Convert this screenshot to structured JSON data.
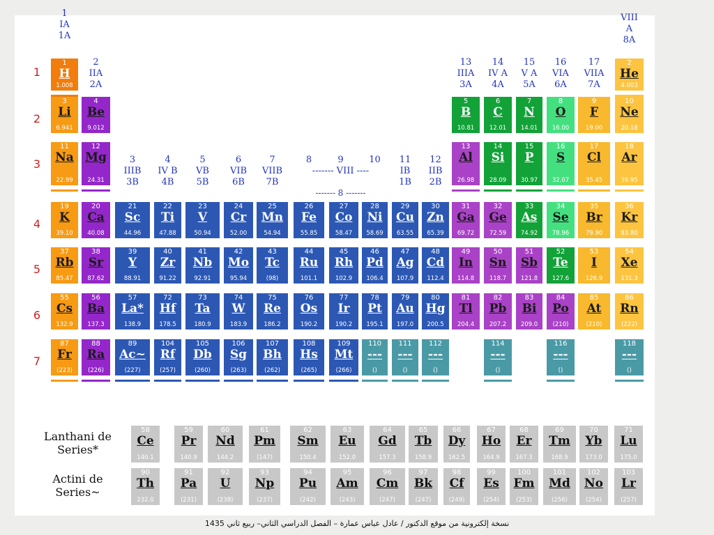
{
  "colors": {
    "alkali": "#f79a14",
    "alkaline": "#9427c9",
    "transition": "#2c58b4",
    "post_transition": "#a942c6",
    "metalloid": "#12a238",
    "nonmetal": "#44e080",
    "halogen": "#f8b92e",
    "noble": "#fcc440",
    "hydrogen": "#f07d0c",
    "undiscovered": "#4a9aa6",
    "lanthanide": "#c8c8c8"
  },
  "period_labels": [
    "1",
    "2",
    "3",
    "4",
    "5",
    "6",
    "7"
  ],
  "group_headers": [
    {
      "col": 1,
      "lines": [
        "1",
        "IA",
        "1A"
      ]
    },
    {
      "col": 2,
      "lines": [
        "2",
        "IIA",
        "2A"
      ]
    },
    {
      "col": 3,
      "lines": [
        "3",
        "IIIB",
        "3B"
      ]
    },
    {
      "col": 4,
      "lines": [
        "4",
        "IV B",
        "4B"
      ]
    },
    {
      "col": 5,
      "lines": [
        "5",
        "VB",
        "5B"
      ]
    },
    {
      "col": 6,
      "lines": [
        "6",
        "VIB",
        "6B"
      ]
    },
    {
      "col": 7,
      "lines": [
        "7",
        "VIIB",
        "7B"
      ]
    },
    {
      "col": 8,
      "lines": [
        "8",
        ""
      ]
    },
    {
      "col": 9,
      "lines": [
        "9",
        "------- VIII ----"
      ]
    },
    {
      "col": 10,
      "lines": [
        "10",
        ""
      ]
    },
    {
      "col": 11,
      "lines": [
        "11",
        "IB",
        "1B"
      ]
    },
    {
      "col": 12,
      "lines": [
        "12",
        "IIB",
        "2B"
      ]
    },
    {
      "col": 13,
      "lines": [
        "13",
        "IIIA",
        "3A"
      ]
    },
    {
      "col": 14,
      "lines": [
        "14",
        "IV A",
        "4A"
      ]
    },
    {
      "col": 15,
      "lines": [
        "15",
        "V A",
        "5A"
      ]
    },
    {
      "col": 16,
      "lines": [
        "16",
        "VIA",
        "6A"
      ]
    },
    {
      "col": 17,
      "lines": [
        "17",
        "VIIA",
        "7A"
      ]
    },
    {
      "col": 18,
      "lines": [
        "VIII",
        "A",
        "8A"
      ]
    }
  ],
  "viii_sub": "------- 8 -------",
  "elements": [
    {
      "n": "1",
      "s": "H",
      "m": "1.008",
      "r": 1,
      "c": 1,
      "t": "hydrogen"
    },
    {
      "n": "2",
      "s": "He",
      "m": "4.003",
      "r": 1,
      "c": 18,
      "t": "noble"
    },
    {
      "n": "3",
      "s": "Li",
      "m": "6.941",
      "r": 2,
      "c": 1,
      "t": "alkali"
    },
    {
      "n": "4",
      "s": "Be",
      "m": "9.012",
      "r": 2,
      "c": 2,
      "t": "alkaline"
    },
    {
      "n": "5",
      "s": "B",
      "m": "10.81",
      "r": 2,
      "c": 13,
      "t": "metalloid"
    },
    {
      "n": "6",
      "s": "C",
      "m": "12.01",
      "r": 2,
      "c": 14,
      "t": "metalloid"
    },
    {
      "n": "7",
      "s": "N",
      "m": "14.01",
      "r": 2,
      "c": 15,
      "t": "metalloid"
    },
    {
      "n": "8",
      "s": "O",
      "m": "16.00",
      "r": 2,
      "c": 16,
      "t": "nonmetal"
    },
    {
      "n": "9",
      "s": "F",
      "m": "19.00",
      "r": 2,
      "c": 17,
      "t": "halogen"
    },
    {
      "n": "10",
      "s": "Ne",
      "m": "20.18",
      "r": 2,
      "c": 18,
      "t": "noble"
    },
    {
      "n": "11",
      "s": "Na",
      "m": "22.99",
      "r": 3,
      "c": 1,
      "t": "alkali"
    },
    {
      "n": "12",
      "s": "Mg",
      "m": "24.31",
      "r": 3,
      "c": 2,
      "t": "alkaline"
    },
    {
      "n": "13",
      "s": "Al",
      "m": "26.98",
      "r": 3,
      "c": 13,
      "t": "post_transition"
    },
    {
      "n": "14",
      "s": "Si",
      "m": "28.09",
      "r": 3,
      "c": 14,
      "t": "metalloid"
    },
    {
      "n": "15",
      "s": "P",
      "m": "30.97",
      "r": 3,
      "c": 15,
      "t": "metalloid"
    },
    {
      "n": "16",
      "s": "S",
      "m": "32.07",
      "r": 3,
      "c": 16,
      "t": "nonmetal"
    },
    {
      "n": "17",
      "s": "Cl",
      "m": "35.45",
      "r": 3,
      "c": 17,
      "t": "halogen"
    },
    {
      "n": "18",
      "s": "Ar",
      "m": "39.95",
      "r": 3,
      "c": 18,
      "t": "noble"
    },
    {
      "n": "19",
      "s": "K",
      "m": "39.10",
      "r": 4,
      "c": 1,
      "t": "alkali"
    },
    {
      "n": "20",
      "s": "Ca",
      "m": "40.08",
      "r": 4,
      "c": 2,
      "t": "alkaline"
    },
    {
      "n": "21",
      "s": "Sc",
      "m": "44.96",
      "r": 4,
      "c": 3,
      "t": "transition"
    },
    {
      "n": "22",
      "s": "Ti",
      "m": "47.88",
      "r": 4,
      "c": 4,
      "t": "transition"
    },
    {
      "n": "23",
      "s": "V",
      "m": "50.94",
      "r": 4,
      "c": 5,
      "t": "transition"
    },
    {
      "n": "24",
      "s": "Cr",
      "m": "52.00",
      "r": 4,
      "c": 6,
      "t": "transition"
    },
    {
      "n": "25",
      "s": "Mn",
      "m": "54.94",
      "r": 4,
      "c": 7,
      "t": "transition"
    },
    {
      "n": "26",
      "s": "Fe",
      "m": "55.85",
      "r": 4,
      "c": 8,
      "t": "transition"
    },
    {
      "n": "27",
      "s": "Co",
      "m": "58.47",
      "r": 4,
      "c": 9,
      "t": "transition"
    },
    {
      "n": "28",
      "s": "Ni",
      "m": "58.69",
      "r": 4,
      "c": 10,
      "t": "transition"
    },
    {
      "n": "29",
      "s": "Cu",
      "m": "63.55",
      "r": 4,
      "c": 11,
      "t": "transition"
    },
    {
      "n": "30",
      "s": "Zn",
      "m": "65.39",
      "r": 4,
      "c": 12,
      "t": "transition"
    },
    {
      "n": "31",
      "s": "Ga",
      "m": "69.72",
      "r": 4,
      "c": 13,
      "t": "post_transition"
    },
    {
      "n": "32",
      "s": "Ge",
      "m": "72.59",
      "r": 4,
      "c": 14,
      "t": "post_transition"
    },
    {
      "n": "33",
      "s": "As",
      "m": "74.92",
      "r": 4,
      "c": 15,
      "t": "metalloid"
    },
    {
      "n": "34",
      "s": "Se",
      "m": "78.96",
      "r": 4,
      "c": 16,
      "t": "nonmetal"
    },
    {
      "n": "35",
      "s": "Br",
      "m": "79.90",
      "r": 4,
      "c": 17,
      "t": "halogen"
    },
    {
      "n": "36",
      "s": "Kr",
      "m": "83.80",
      "r": 4,
      "c": 18,
      "t": "noble"
    },
    {
      "n": "37",
      "s": "Rb",
      "m": "85.47",
      "r": 5,
      "c": 1,
      "t": "alkali"
    },
    {
      "n": "38",
      "s": "Sr",
      "m": "87.62",
      "r": 5,
      "c": 2,
      "t": "alkaline"
    },
    {
      "n": "39",
      "s": "Y",
      "m": "88.91",
      "r": 5,
      "c": 3,
      "t": "transition"
    },
    {
      "n": "40",
      "s": "Zr",
      "m": "91.22",
      "r": 5,
      "c": 4,
      "t": "transition"
    },
    {
      "n": "41",
      "s": "Nb",
      "m": "92.91",
      "r": 5,
      "c": 5,
      "t": "transition"
    },
    {
      "n": "42",
      "s": "Mo",
      "m": "95.94",
      "r": 5,
      "c": 6,
      "t": "transition"
    },
    {
      "n": "43",
      "s": "Tc",
      "m": "(98)",
      "r": 5,
      "c": 7,
      "t": "transition"
    },
    {
      "n": "44",
      "s": "Ru",
      "m": "101.1",
      "r": 5,
      "c": 8,
      "t": "transition"
    },
    {
      "n": "45",
      "s": "Rh",
      "m": "102.9",
      "r": 5,
      "c": 9,
      "t": "transition"
    },
    {
      "n": "46",
      "s": "Pd",
      "m": "106.4",
      "r": 5,
      "c": 10,
      "t": "transition"
    },
    {
      "n": "47",
      "s": "Ag",
      "m": "107.9",
      "r": 5,
      "c": 11,
      "t": "transition"
    },
    {
      "n": "48",
      "s": "Cd",
      "m": "112.4",
      "r": 5,
      "c": 12,
      "t": "transition"
    },
    {
      "n": "49",
      "s": "In",
      "m": "114.8",
      "r": 5,
      "c": 13,
      "t": "post_transition"
    },
    {
      "n": "50",
      "s": "Sn",
      "m": "118.7",
      "r": 5,
      "c": 14,
      "t": "post_transition"
    },
    {
      "n": "51",
      "s": "Sb",
      "m": "121.8",
      "r": 5,
      "c": 15,
      "t": "post_transition"
    },
    {
      "n": "52",
      "s": "Te",
      "m": "127.6",
      "r": 5,
      "c": 16,
      "t": "metalloid"
    },
    {
      "n": "53",
      "s": "I",
      "m": "126.9",
      "r": 5,
      "c": 17,
      "t": "halogen"
    },
    {
      "n": "54",
      "s": "Xe",
      "m": "131.3",
      "r": 5,
      "c": 18,
      "t": "noble"
    },
    {
      "n": "55",
      "s": "Cs",
      "m": "132.9",
      "r": 6,
      "c": 1,
      "t": "alkali"
    },
    {
      "n": "56",
      "s": "Ba",
      "m": "137.3",
      "r": 6,
      "c": 2,
      "t": "alkaline"
    },
    {
      "n": "57",
      "s": "La*",
      "m": "138.9",
      "r": 6,
      "c": 3,
      "t": "transition"
    },
    {
      "n": "72",
      "s": "Hf",
      "m": "178.5",
      "r": 6,
      "c": 4,
      "t": "transition"
    },
    {
      "n": "73",
      "s": "Ta",
      "m": "180.9",
      "r": 6,
      "c": 5,
      "t": "transition"
    },
    {
      "n": "74",
      "s": "W",
      "m": "183.9",
      "r": 6,
      "c": 6,
      "t": "transition"
    },
    {
      "n": "75",
      "s": "Re",
      "m": "186.2",
      "r": 6,
      "c": 7,
      "t": "transition"
    },
    {
      "n": "76",
      "s": "Os",
      "m": "190.2",
      "r": 6,
      "c": 8,
      "t": "transition"
    },
    {
      "n": "77",
      "s": "Ir",
      "m": "190.2",
      "r": 6,
      "c": 9,
      "t": "transition"
    },
    {
      "n": "78",
      "s": "Pt",
      "m": "195.1",
      "r": 6,
      "c": 10,
      "t": "transition"
    },
    {
      "n": "79",
      "s": "Au",
      "m": "197.0",
      "r": 6,
      "c": 11,
      "t": "transition"
    },
    {
      "n": "80",
      "s": "Hg",
      "m": "200.5",
      "r": 6,
      "c": 12,
      "t": "transition"
    },
    {
      "n": "81",
      "s": "Tl",
      "m": "204.4",
      "r": 6,
      "c": 13,
      "t": "post_transition"
    },
    {
      "n": "82",
      "s": "Pb",
      "m": "207.2",
      "r": 6,
      "c": 14,
      "t": "post_transition"
    },
    {
      "n": "83",
      "s": "Bi",
      "m": "209.0",
      "r": 6,
      "c": 15,
      "t": "post_transition"
    },
    {
      "n": "84",
      "s": "Po",
      "m": "(210)",
      "r": 6,
      "c": 16,
      "t": "post_transition"
    },
    {
      "n": "85",
      "s": "At",
      "m": "(210)",
      "r": 6,
      "c": 17,
      "t": "halogen"
    },
    {
      "n": "86",
      "s": "Rn",
      "m": "(222)",
      "r": 6,
      "c": 18,
      "t": "noble"
    },
    {
      "n": "87",
      "s": "Fr",
      "m": "(223)",
      "r": 7,
      "c": 1,
      "t": "alkali"
    },
    {
      "n": "88",
      "s": "Ra",
      "m": "(226)",
      "r": 7,
      "c": 2,
      "t": "alkaline"
    },
    {
      "n": "89",
      "s": "Ac~",
      "m": "(227)",
      "r": 7,
      "c": 3,
      "t": "transition"
    },
    {
      "n": "104",
      "s": "Rf",
      "m": "(257)",
      "r": 7,
      "c": 4,
      "t": "transition"
    },
    {
      "n": "105",
      "s": "Db",
      "m": "(260)",
      "r": 7,
      "c": 5,
      "t": "transition"
    },
    {
      "n": "106",
      "s": "Sg",
      "m": "(263)",
      "r": 7,
      "c": 6,
      "t": "transition"
    },
    {
      "n": "107",
      "s": "Bh",
      "m": "(262)",
      "r": 7,
      "c": 7,
      "t": "transition"
    },
    {
      "n": "108",
      "s": "Hs",
      "m": "(265)",
      "r": 7,
      "c": 8,
      "t": "transition"
    },
    {
      "n": "109",
      "s": "Mt",
      "m": "(266)",
      "r": 7,
      "c": 9,
      "t": "transition"
    },
    {
      "n": "110",
      "s": "---",
      "m": "()",
      "r": 7,
      "c": 10,
      "t": "undiscovered"
    },
    {
      "n": "111",
      "s": "---",
      "m": "()",
      "r": 7,
      "c": 11,
      "t": "undiscovered"
    },
    {
      "n": "112",
      "s": "---",
      "m": "()",
      "r": 7,
      "c": 12,
      "t": "undiscovered"
    },
    {
      "n": "114",
      "s": "---",
      "m": "()",
      "r": 7,
      "c": 14,
      "t": "undiscovered"
    },
    {
      "n": "116",
      "s": "---",
      "m": "()",
      "r": 7,
      "c": 16,
      "t": "undiscovered"
    },
    {
      "n": "118",
      "s": "---",
      "m": "()",
      "r": 7,
      "c": 18,
      "t": "undiscovered"
    }
  ],
  "lanthanide_label": [
    "Lanthani de",
    "Series*"
  ],
  "actinide_label": [
    "Actini de",
    "Series~"
  ],
  "lanthanides": [
    {
      "n": "58",
      "s": "Ce",
      "m": "140.1"
    },
    {
      "n": "59",
      "s": "Pr",
      "m": "140.9"
    },
    {
      "n": "60",
      "s": "Nd",
      "m": "144.2"
    },
    {
      "n": "61",
      "s": "Pm",
      "m": "(147)"
    },
    {
      "n": "62",
      "s": "Sm",
      "m": "150.4"
    },
    {
      "n": "63",
      "s": "Eu",
      "m": "152.0"
    },
    {
      "n": "64",
      "s": "Gd",
      "m": "157.3"
    },
    {
      "n": "65",
      "s": "Tb",
      "m": "158.9"
    },
    {
      "n": "66",
      "s": "Dy",
      "m": "162.5"
    },
    {
      "n": "67",
      "s": "Ho",
      "m": "164.9"
    },
    {
      "n": "68",
      "s": "Er",
      "m": "167.3"
    },
    {
      "n": "69",
      "s": "Tm",
      "m": "168.9"
    },
    {
      "n": "70",
      "s": "Yb",
      "m": "173.0"
    },
    {
      "n": "71",
      "s": "Lu",
      "m": "175.0"
    }
  ],
  "actinides": [
    {
      "n": "90",
      "s": "Th",
      "m": "232.0"
    },
    {
      "n": "91",
      "s": "Pa",
      "m": "(231)"
    },
    {
      "n": "92",
      "s": "U",
      "m": "(238)"
    },
    {
      "n": "93",
      "s": "Np",
      "m": "(237)"
    },
    {
      "n": "94",
      "s": "Pu",
      "m": "(242)"
    },
    {
      "n": "95",
      "s": "Am",
      "m": "(243)"
    },
    {
      "n": "96",
      "s": "Cm",
      "m": "(247)"
    },
    {
      "n": "97",
      "s": "Bk",
      "m": "(247)"
    },
    {
      "n": "98",
      "s": "Cf",
      "m": "(249)"
    },
    {
      "n": "99",
      "s": "Es",
      "m": "(254)"
    },
    {
      "n": "100",
      "s": "Fm",
      "m": "(253)"
    },
    {
      "n": "101",
      "s": "Md",
      "m": "(256)"
    },
    {
      "n": "102",
      "s": "No",
      "m": "(254)"
    },
    {
      "n": "103",
      "s": "Lr",
      "m": "(257)"
    }
  ],
  "footer": "نسخة إلكترونية من موقع الدكتور / عادل عباس عمارة – الفصل الدراسي الثاني– ربيع ثاني 1435"
}
